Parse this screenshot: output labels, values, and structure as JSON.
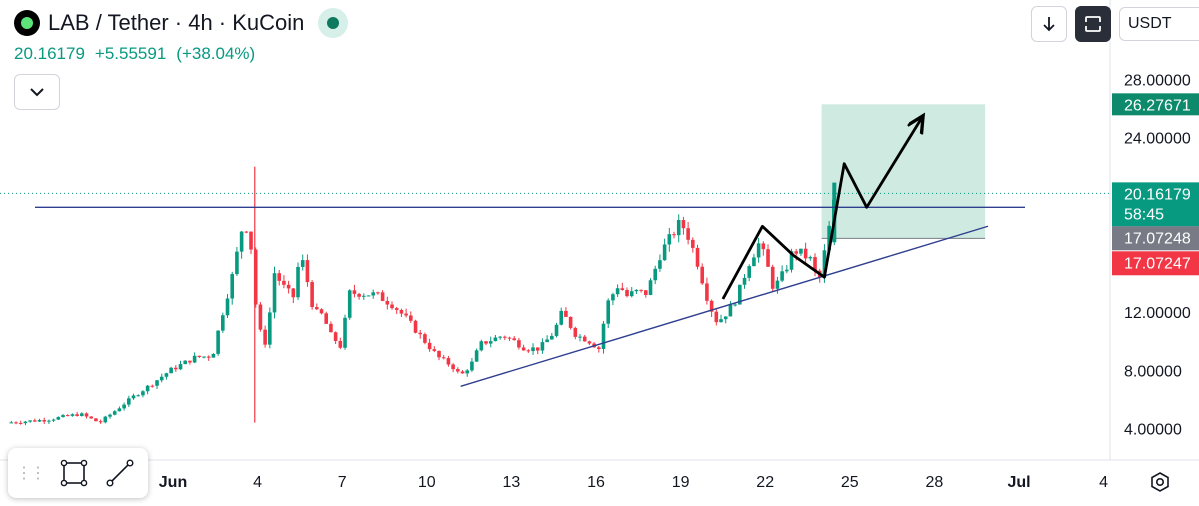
{
  "header": {
    "title": "LAB / Tether · 4h · KuCoin",
    "price": "20.16179",
    "change": "+5.55591",
    "change_pct": "(+38.04%)"
  },
  "toolbar_right": {
    "currency": "USDT"
  },
  "labels": {
    "target": "26.27671",
    "last_price": "20.16179",
    "countdown": "58:45",
    "level_gray": "17.07248",
    "level_red": "17.07247"
  },
  "colors": {
    "up": "#089981",
    "down": "#f23645",
    "trendline": "#2f3f8f",
    "target_box": "#c5e6dc",
    "label_gray": "#787b86"
  },
  "chart_data": {
    "type": "candlestick",
    "symbol": "LAB/USDT",
    "timeframe": "4h",
    "exchange": "KuCoin",
    "yaxis": {
      "ticks": [
        "28.00000",
        "24.00000",
        "12.00000",
        "8.00000",
        "4.00000"
      ],
      "tick_values": [
        28,
        24,
        12,
        8,
        4
      ]
    },
    "xaxis": {
      "ticks": [
        "Jun",
        "4",
        "7",
        "10",
        "13",
        "16",
        "19",
        "22",
        "25",
        "28",
        "Jul",
        "4"
      ],
      "tick_days": [
        1,
        4,
        7,
        10,
        13,
        16,
        19,
        22,
        25,
        28,
        31,
        34
      ]
    },
    "close_path": [
      [
        -4.9,
        4.4
      ],
      [
        -3.5,
        4.6
      ],
      [
        -2.3,
        5.0
      ],
      [
        -1.6,
        4.4
      ],
      [
        -0.4,
        6.2
      ],
      [
        0.2,
        7.0
      ],
      [
        0.9,
        8.0
      ],
      [
        1.8,
        8.9
      ],
      [
        2.4,
        9.0
      ],
      [
        2.7,
        11.5
      ],
      [
        3.2,
        15.2
      ],
      [
        3.4,
        17.6
      ],
      [
        3.7,
        18.0
      ],
      [
        4.0,
        11.0
      ],
      [
        4.3,
        9.8
      ],
      [
        4.6,
        14.7
      ],
      [
        5.0,
        13.5
      ],
      [
        5.3,
        13.0
      ],
      [
        5.5,
        16.1
      ],
      [
        5.7,
        14.7
      ],
      [
        6.0,
        12.0
      ],
      [
        6.3,
        11.8
      ],
      [
        6.6,
        10.4
      ],
      [
        6.8,
        10.0
      ],
      [
        7.0,
        9.5
      ],
      [
        7.2,
        13.3
      ],
      [
        7.6,
        13.3
      ],
      [
        8.2,
        13.2
      ],
      [
        8.8,
        12.5
      ],
      [
        9.3,
        11.5
      ],
      [
        9.8,
        10.3
      ],
      [
        10.4,
        8.9
      ],
      [
        10.9,
        8.3
      ],
      [
        11.2,
        7.6
      ],
      [
        11.6,
        8.5
      ],
      [
        11.9,
        9.8
      ],
      [
        12.3,
        10.1
      ],
      [
        12.7,
        10.4
      ],
      [
        13.1,
        10.0
      ],
      [
        13.5,
        9.5
      ],
      [
        14.0,
        9.5
      ],
      [
        14.5,
        10.6
      ],
      [
        14.8,
        12.0
      ],
      [
        15.3,
        10.4
      ],
      [
        15.7,
        10.1
      ],
      [
        16.1,
        9.5
      ],
      [
        16.4,
        12.6
      ],
      [
        16.8,
        13.9
      ],
      [
        17.1,
        13.1
      ],
      [
        17.4,
        13.4
      ],
      [
        17.8,
        13.3
      ],
      [
        18.3,
        16.1
      ],
      [
        18.7,
        17.3
      ],
      [
        19.0,
        18.2
      ],
      [
        19.3,
        17.1
      ],
      [
        19.6,
        15.4
      ],
      [
        20.0,
        12.6
      ],
      [
        20.3,
        11.3
      ],
      [
        20.7,
        12.1
      ],
      [
        21.0,
        13.0
      ],
      [
        21.4,
        15.3
      ],
      [
        21.8,
        16.8
      ],
      [
        22.1,
        15.0
      ],
      [
        22.3,
        13.6
      ],
      [
        22.7,
        14.8
      ],
      [
        23.0,
        16.3
      ],
      [
        23.3,
        16.0
      ],
      [
        23.6,
        15.6
      ],
      [
        23.9,
        14.0
      ],
      [
        24.2,
        17.1
      ],
      [
        24.5,
        20.16
      ]
    ],
    "lines": {
      "horizontal_resistance": 19.2,
      "ascending_support": [
        [
          11.2,
          6.9
        ],
        [
          29.9,
          17.9
        ]
      ],
      "projection_path": [
        [
          20.5,
          12.9
        ],
        [
          21.9,
          17.9
        ],
        [
          23.0,
          15.9
        ],
        [
          24.1,
          14.4
        ],
        [
          24.8,
          22.2
        ],
        [
          25.6,
          19.2
        ],
        [
          27.6,
          25.5
        ]
      ],
      "target_box": {
        "x_range": [
          24.0,
          29.8
        ],
        "y_range": [
          17.07,
          26.28
        ]
      }
    }
  }
}
